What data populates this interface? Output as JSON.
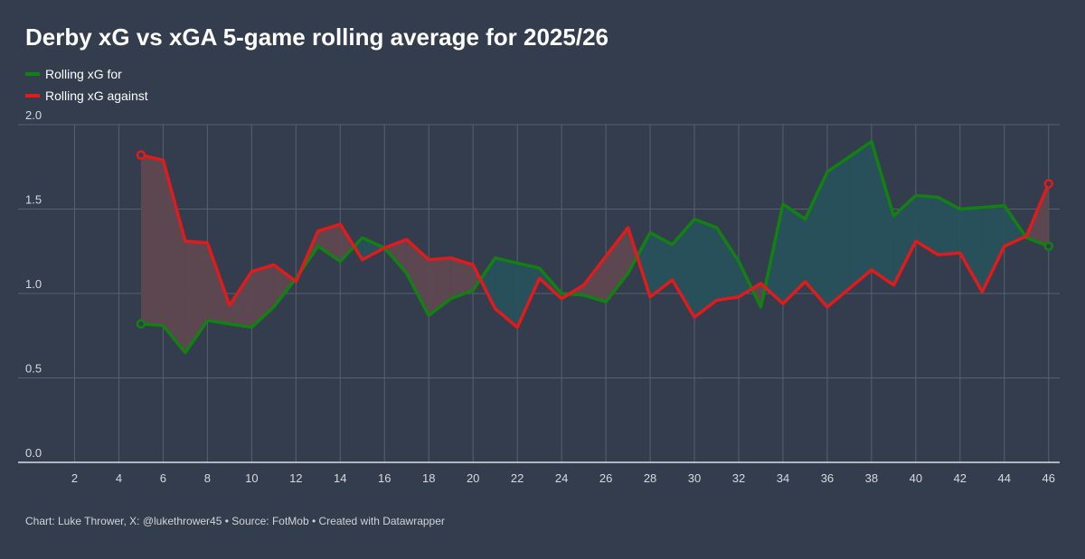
{
  "title": "Derby xG vs xGA 5-game rolling average for 2025/26",
  "footer": "Chart: Luke Thrower, X: @lukethrower45 • Source: FotMob • Created with Datawrapper",
  "legend": [
    {
      "label": "Rolling xG for",
      "color": "#128012"
    },
    {
      "label": "Rolling xG against",
      "color": "#e01b1b"
    }
  ],
  "colors": {
    "background": "#333d4d",
    "fill_for_higher": "#27505a",
    "fill_against_higher": "#5c4750",
    "grid": "#56606e",
    "baseline": "#ffffff"
  },
  "chart_data": {
    "type": "line",
    "title": "Derby xG vs xGA 5-game rolling average for 2025/26",
    "xlabel": "",
    "ylabel": "",
    "xlim": [
      1,
      46
    ],
    "ylim": [
      0,
      2
    ],
    "x_ticks": [
      2,
      4,
      6,
      8,
      10,
      12,
      14,
      16,
      18,
      20,
      22,
      24,
      26,
      28,
      30,
      32,
      34,
      36,
      38,
      40,
      42,
      44,
      46
    ],
    "y_ticks": [
      0,
      0.5,
      1,
      1.5,
      2
    ],
    "y_tick_labels": [
      "0.0",
      "0.5",
      "1.0",
      "1.5",
      "2.0"
    ],
    "grid": true,
    "legend_position": "top-left",
    "fill_between": true,
    "x": [
      5,
      6,
      7,
      8,
      9,
      10,
      11,
      12,
      13,
      14,
      15,
      16,
      17,
      18,
      19,
      20,
      21,
      22,
      23,
      24,
      25,
      26,
      27,
      28,
      29,
      30,
      31,
      32,
      33,
      34,
      35,
      36,
      37,
      38,
      39,
      40,
      41,
      42,
      43,
      44,
      45,
      46
    ],
    "series": [
      {
        "name": "Rolling xG for",
        "color": "#128012",
        "values": [
          0.82,
          0.81,
          0.65,
          0.84,
          0.82,
          0.8,
          0.92,
          1.09,
          1.28,
          1.19,
          1.33,
          1.27,
          1.12,
          0.87,
          0.97,
          1.02,
          1.21,
          1.18,
          1.15,
          1.0,
          0.99,
          0.95,
          1.12,
          1.36,
          1.29,
          1.44,
          1.39,
          1.19,
          0.92,
          1.53,
          1.44,
          1.72,
          1.81,
          1.9,
          1.46,
          1.58,
          1.57,
          1.5,
          1.51,
          1.52,
          1.33,
          1.28
        ]
      },
      {
        "name": "Rolling xG against",
        "color": "#e01b1b",
        "values": [
          1.82,
          1.79,
          1.31,
          1.3,
          0.93,
          1.13,
          1.17,
          1.07,
          1.37,
          1.41,
          1.2,
          1.27,
          1.32,
          1.2,
          1.21,
          1.17,
          0.91,
          0.8,
          1.09,
          0.97,
          1.05,
          1.22,
          1.39,
          0.98,
          1.08,
          0.86,
          0.96,
          0.98,
          1.06,
          0.94,
          1.07,
          0.92,
          1.03,
          1.14,
          1.05,
          1.31,
          1.23,
          1.24,
          1.01,
          1.28,
          1.34,
          1.65
        ]
      }
    ]
  }
}
